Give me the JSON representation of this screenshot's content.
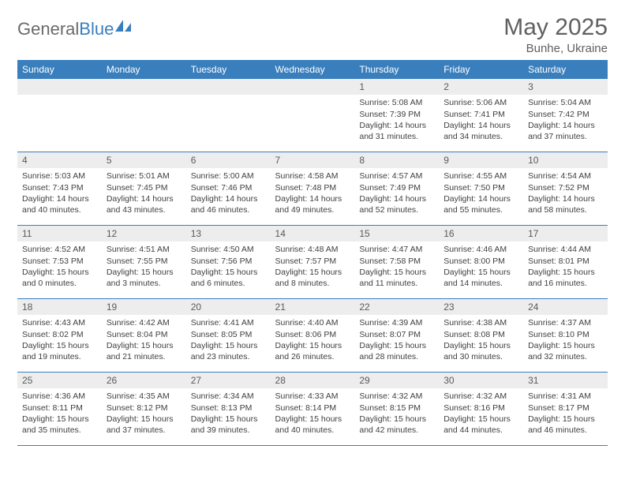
{
  "logo": {
    "text_gray": "General",
    "text_blue": "Blue",
    "icon_color": "#3a7fbd"
  },
  "header": {
    "month_title": "May 2025",
    "location": "Bunhe, Ukraine"
  },
  "colors": {
    "header_bg": "#3a7fbd",
    "daynum_bg": "#ededed",
    "text": "#404040",
    "title_text": "#606060"
  },
  "weekdays": [
    "Sunday",
    "Monday",
    "Tuesday",
    "Wednesday",
    "Thursday",
    "Friday",
    "Saturday"
  ],
  "weeks": [
    [
      {
        "day": "",
        "lines": [
          "",
          "",
          "",
          ""
        ]
      },
      {
        "day": "",
        "lines": [
          "",
          "",
          "",
          ""
        ]
      },
      {
        "day": "",
        "lines": [
          "",
          "",
          "",
          ""
        ]
      },
      {
        "day": "",
        "lines": [
          "",
          "",
          "",
          ""
        ]
      },
      {
        "day": "1",
        "lines": [
          "Sunrise: 5:08 AM",
          "Sunset: 7:39 PM",
          "Daylight: 14 hours",
          "and 31 minutes."
        ]
      },
      {
        "day": "2",
        "lines": [
          "Sunrise: 5:06 AM",
          "Sunset: 7:41 PM",
          "Daylight: 14 hours",
          "and 34 minutes."
        ]
      },
      {
        "day": "3",
        "lines": [
          "Sunrise: 5:04 AM",
          "Sunset: 7:42 PM",
          "Daylight: 14 hours",
          "and 37 minutes."
        ]
      }
    ],
    [
      {
        "day": "4",
        "lines": [
          "Sunrise: 5:03 AM",
          "Sunset: 7:43 PM",
          "Daylight: 14 hours",
          "and 40 minutes."
        ]
      },
      {
        "day": "5",
        "lines": [
          "Sunrise: 5:01 AM",
          "Sunset: 7:45 PM",
          "Daylight: 14 hours",
          "and 43 minutes."
        ]
      },
      {
        "day": "6",
        "lines": [
          "Sunrise: 5:00 AM",
          "Sunset: 7:46 PM",
          "Daylight: 14 hours",
          "and 46 minutes."
        ]
      },
      {
        "day": "7",
        "lines": [
          "Sunrise: 4:58 AM",
          "Sunset: 7:48 PM",
          "Daylight: 14 hours",
          "and 49 minutes."
        ]
      },
      {
        "day": "8",
        "lines": [
          "Sunrise: 4:57 AM",
          "Sunset: 7:49 PM",
          "Daylight: 14 hours",
          "and 52 minutes."
        ]
      },
      {
        "day": "9",
        "lines": [
          "Sunrise: 4:55 AM",
          "Sunset: 7:50 PM",
          "Daylight: 14 hours",
          "and 55 minutes."
        ]
      },
      {
        "day": "10",
        "lines": [
          "Sunrise: 4:54 AM",
          "Sunset: 7:52 PM",
          "Daylight: 14 hours",
          "and 58 minutes."
        ]
      }
    ],
    [
      {
        "day": "11",
        "lines": [
          "Sunrise: 4:52 AM",
          "Sunset: 7:53 PM",
          "Daylight: 15 hours",
          "and 0 minutes."
        ]
      },
      {
        "day": "12",
        "lines": [
          "Sunrise: 4:51 AM",
          "Sunset: 7:55 PM",
          "Daylight: 15 hours",
          "and 3 minutes."
        ]
      },
      {
        "day": "13",
        "lines": [
          "Sunrise: 4:50 AM",
          "Sunset: 7:56 PM",
          "Daylight: 15 hours",
          "and 6 minutes."
        ]
      },
      {
        "day": "14",
        "lines": [
          "Sunrise: 4:48 AM",
          "Sunset: 7:57 PM",
          "Daylight: 15 hours",
          "and 8 minutes."
        ]
      },
      {
        "day": "15",
        "lines": [
          "Sunrise: 4:47 AM",
          "Sunset: 7:58 PM",
          "Daylight: 15 hours",
          "and 11 minutes."
        ]
      },
      {
        "day": "16",
        "lines": [
          "Sunrise: 4:46 AM",
          "Sunset: 8:00 PM",
          "Daylight: 15 hours",
          "and 14 minutes."
        ]
      },
      {
        "day": "17",
        "lines": [
          "Sunrise: 4:44 AM",
          "Sunset: 8:01 PM",
          "Daylight: 15 hours",
          "and 16 minutes."
        ]
      }
    ],
    [
      {
        "day": "18",
        "lines": [
          "Sunrise: 4:43 AM",
          "Sunset: 8:02 PM",
          "Daylight: 15 hours",
          "and 19 minutes."
        ]
      },
      {
        "day": "19",
        "lines": [
          "Sunrise: 4:42 AM",
          "Sunset: 8:04 PM",
          "Daylight: 15 hours",
          "and 21 minutes."
        ]
      },
      {
        "day": "20",
        "lines": [
          "Sunrise: 4:41 AM",
          "Sunset: 8:05 PM",
          "Daylight: 15 hours",
          "and 23 minutes."
        ]
      },
      {
        "day": "21",
        "lines": [
          "Sunrise: 4:40 AM",
          "Sunset: 8:06 PM",
          "Daylight: 15 hours",
          "and 26 minutes."
        ]
      },
      {
        "day": "22",
        "lines": [
          "Sunrise: 4:39 AM",
          "Sunset: 8:07 PM",
          "Daylight: 15 hours",
          "and 28 minutes."
        ]
      },
      {
        "day": "23",
        "lines": [
          "Sunrise: 4:38 AM",
          "Sunset: 8:08 PM",
          "Daylight: 15 hours",
          "and 30 minutes."
        ]
      },
      {
        "day": "24",
        "lines": [
          "Sunrise: 4:37 AM",
          "Sunset: 8:10 PM",
          "Daylight: 15 hours",
          "and 32 minutes."
        ]
      }
    ],
    [
      {
        "day": "25",
        "lines": [
          "Sunrise: 4:36 AM",
          "Sunset: 8:11 PM",
          "Daylight: 15 hours",
          "and 35 minutes."
        ]
      },
      {
        "day": "26",
        "lines": [
          "Sunrise: 4:35 AM",
          "Sunset: 8:12 PM",
          "Daylight: 15 hours",
          "and 37 minutes."
        ]
      },
      {
        "day": "27",
        "lines": [
          "Sunrise: 4:34 AM",
          "Sunset: 8:13 PM",
          "Daylight: 15 hours",
          "and 39 minutes."
        ]
      },
      {
        "day": "28",
        "lines": [
          "Sunrise: 4:33 AM",
          "Sunset: 8:14 PM",
          "Daylight: 15 hours",
          "and 40 minutes."
        ]
      },
      {
        "day": "29",
        "lines": [
          "Sunrise: 4:32 AM",
          "Sunset: 8:15 PM",
          "Daylight: 15 hours",
          "and 42 minutes."
        ]
      },
      {
        "day": "30",
        "lines": [
          "Sunrise: 4:32 AM",
          "Sunset: 8:16 PM",
          "Daylight: 15 hours",
          "and 44 minutes."
        ]
      },
      {
        "day": "31",
        "lines": [
          "Sunrise: 4:31 AM",
          "Sunset: 8:17 PM",
          "Daylight: 15 hours",
          "and 46 minutes."
        ]
      }
    ]
  ]
}
